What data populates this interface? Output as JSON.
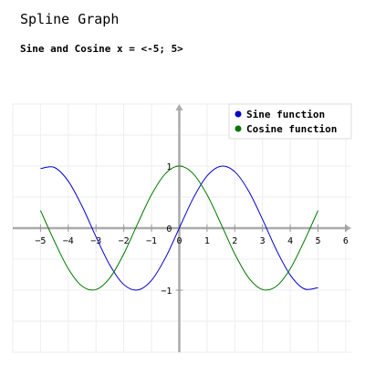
{
  "page": {
    "title": "Spline Graph"
  },
  "chart_data": {
    "type": "line",
    "title": "Sine and Cosine x = <-5; 5>",
    "xlabel": "",
    "ylabel": "",
    "xlim": [
      -6,
      6.2
    ],
    "ylim": [
      -2,
      2
    ],
    "grid": true,
    "legend_position": "top-right",
    "x_ticks": [
      -5,
      -4,
      -3,
      -2,
      -1,
      0,
      1,
      2,
      3,
      4,
      5,
      6
    ],
    "y_ticks": [
      -1,
      1
    ],
    "x": [
      -5,
      -4.5,
      -4,
      -3.5,
      -3,
      -2.5,
      -2,
      -1.5,
      -1,
      -0.5,
      0,
      0.5,
      1,
      1.5,
      2,
      2.5,
      3,
      3.5,
      4,
      4.5,
      5
    ],
    "series": [
      {
        "name": "Sine function",
        "color": "#0000cc",
        "values": [
          0.959,
          0.978,
          0.757,
          0.351,
          -0.141,
          -0.598,
          -0.909,
          -0.997,
          -0.841,
          -0.479,
          0,
          0.479,
          0.841,
          0.997,
          0.909,
          0.598,
          0.141,
          -0.351,
          -0.757,
          -0.978,
          -0.959
        ]
      },
      {
        "name": "Cosine function",
        "color": "#007700",
        "values": [
          0.284,
          -0.211,
          -0.654,
          -0.936,
          -0.99,
          -0.801,
          -0.416,
          0.071,
          0.54,
          0.878,
          1,
          0.878,
          0.54,
          0.071,
          -0.416,
          -0.801,
          -0.99,
          -0.936,
          -0.654,
          -0.211,
          0.284
        ]
      }
    ]
  }
}
